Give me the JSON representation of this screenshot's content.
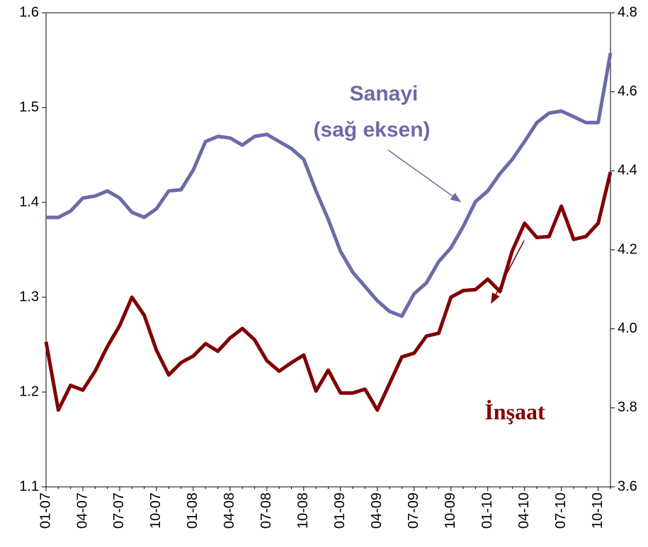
{
  "chart_data": {
    "type": "line",
    "categories": [
      "01-07",
      null,
      null,
      "04-07",
      null,
      null,
      "07-07",
      null,
      null,
      "10-07",
      null,
      null,
      "01-08",
      null,
      null,
      "04-08",
      null,
      null,
      "07-08",
      null,
      null,
      "10-08",
      null,
      null,
      "01-09",
      null,
      null,
      "04-09",
      null,
      null,
      "07-09",
      null,
      null,
      "10-09",
      null,
      null,
      "01-10",
      null,
      null,
      "04-10",
      null,
      null,
      "07-10",
      null,
      null,
      "10-10",
      null
    ],
    "series": [
      {
        "name": "Sanayi (sağ eksen)",
        "color": "#6b6ba8",
        "axis": "y2",
        "values": [
          4.282,
          4.282,
          4.298,
          4.331,
          4.336,
          4.349,
          4.331,
          4.295,
          4.282,
          4.304,
          4.349,
          4.352,
          4.402,
          4.474,
          4.487,
          4.483,
          4.465,
          4.487,
          4.492,
          4.474,
          4.456,
          4.429,
          4.349,
          4.277,
          4.196,
          4.143,
          4.107,
          4.071,
          4.044,
          4.032,
          4.089,
          4.116,
          4.17,
          4.205,
          4.259,
          4.322,
          4.349,
          4.393,
          4.429,
          4.474,
          4.522,
          4.546,
          4.551,
          4.537,
          4.522,
          4.522,
          4.698
        ]
      },
      {
        "name": "İnşaat",
        "color": "#800000",
        "values": [
          1.253,
          1.181,
          1.207,
          1.202,
          1.222,
          1.248,
          1.27,
          1.3,
          1.281,
          1.244,
          1.218,
          1.231,
          1.238,
          1.251,
          1.243,
          1.257,
          1.267,
          1.255,
          1.233,
          1.222,
          1.231,
          1.239,
          1.201,
          1.223,
          1.199,
          1.199,
          1.203,
          1.181,
          1.209,
          1.237,
          1.241,
          1.259,
          1.262,
          1.3,
          1.307,
          1.308,
          1.319,
          1.306,
          1.349,
          1.378,
          1.363,
          1.364,
          1.396,
          1.361,
          1.364,
          1.378,
          1.432
        ]
      }
    ],
    "annotations": [
      "Sanayi",
      "(sağ eksen)",
      "İnşaat"
    ],
    "ylim": [
      1.1,
      1.6
    ],
    "yticks": [
      1.1,
      1.2,
      1.3,
      1.4,
      1.5,
      1.6
    ],
    "y2lim": [
      3.6,
      4.8
    ],
    "y2ticks": [
      3.6,
      3.8,
      4.0,
      4.2,
      4.4,
      4.6,
      4.8
    ]
  }
}
